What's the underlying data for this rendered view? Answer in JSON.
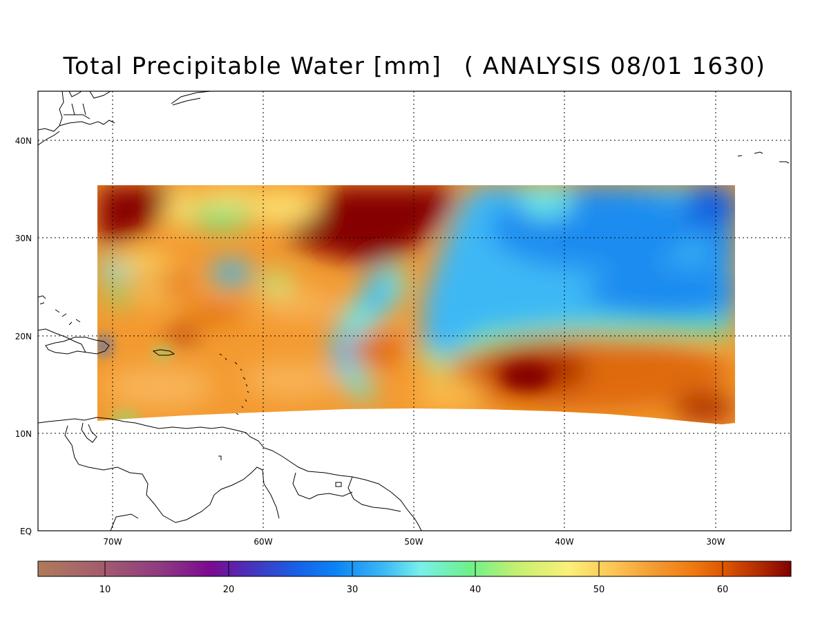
{
  "title": {
    "main": "Total Precipitable Water [mm]",
    "analysis": "( ANALYSIS 08/01 1630)"
  },
  "axes": {
    "x_ticks": [
      "70W",
      "60W",
      "50W",
      "40W",
      "30W"
    ],
    "y_ticks": [
      "EQ",
      "10N",
      "20N",
      "30N",
      "40N"
    ],
    "x_lon_range": [
      -75,
      -25
    ],
    "y_lat_range": [
      0,
      45
    ],
    "grid": "dotted"
  },
  "colorbar": {
    "ticks": [
      "10",
      "20",
      "30",
      "40",
      "50",
      "60"
    ],
    "range": [
      5,
      66
    ],
    "stops": [
      {
        "v": 5,
        "c": "#b07a5a"
      },
      {
        "v": 10,
        "c": "#a35e6e"
      },
      {
        "v": 15,
        "c": "#8e3a80"
      },
      {
        "v": 19,
        "c": "#7a0a90"
      },
      {
        "v": 22,
        "c": "#4a30b8"
      },
      {
        "v": 26,
        "c": "#1760e8"
      },
      {
        "v": 29,
        "c": "#0a82f5"
      },
      {
        "v": 33,
        "c": "#3cb8f5"
      },
      {
        "v": 36,
        "c": "#78f0ea"
      },
      {
        "v": 40,
        "c": "#6ef08a"
      },
      {
        "v": 44,
        "c": "#c8f070"
      },
      {
        "v": 48,
        "c": "#fbf07a"
      },
      {
        "v": 52,
        "c": "#fbc050"
      },
      {
        "v": 55,
        "c": "#f39a30"
      },
      {
        "v": 58,
        "c": "#f07a10"
      },
      {
        "v": 61,
        "c": "#d85000"
      },
      {
        "v": 64,
        "c": "#a82200"
      },
      {
        "v": 66,
        "c": "#800000"
      }
    ]
  },
  "field_colors": {
    "no_data": "#ffffff",
    "dark_red": "#850000",
    "red": "#a82800",
    "orange_dark": "#df6a08",
    "orange": "#f39a30",
    "orange_light": "#f8b458",
    "yellow": "#fbe070",
    "light_green": "#b8f080",
    "green": "#6ef08a",
    "aqua": "#6ce6e6",
    "light_blue": "#3cb8f5",
    "blue": "#1e8cf0",
    "deep_blue": "#1360e0",
    "purple_blue": "#3c40c8"
  }
}
